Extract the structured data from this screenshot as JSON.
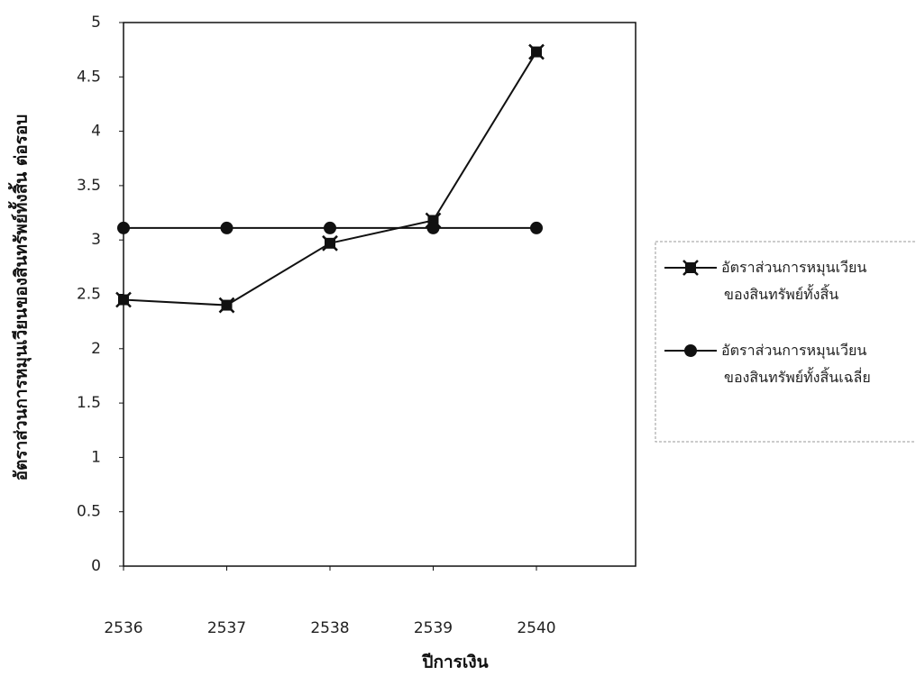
{
  "chart_data": {
    "type": "line",
    "y_label": "อัตราส่วนการหมุนเวียนของสินทรัพย์ทั้งสิ้น ต่อรอบ",
    "x_label": "ปีการเงิน",
    "categories": [
      "2536",
      "2537",
      "2538",
      "2539",
      "2540"
    ],
    "series": [
      {
        "name": "อัตราส่วนการหมุนเวียน ของสินทรัพย์ทั้งสิ้น",
        "color": "#111111",
        "marker": "x-square",
        "values": [
          2.45,
          2.4,
          2.97,
          3.18,
          4.73
        ]
      },
      {
        "name": "อัตราส่วนการหมุนเวียน ของสินทรัพย์ทั้งสิ้นเฉลี่ย",
        "color": "#111111",
        "marker": "circle",
        "values": [
          3.11,
          3.11,
          3.11,
          3.11,
          3.11
        ]
      }
    ],
    "ylim": [
      0,
      5
    ],
    "yticks": [
      0,
      0.5,
      1,
      1.5,
      2,
      2.5,
      3,
      3.5,
      4,
      4.5,
      5
    ]
  }
}
